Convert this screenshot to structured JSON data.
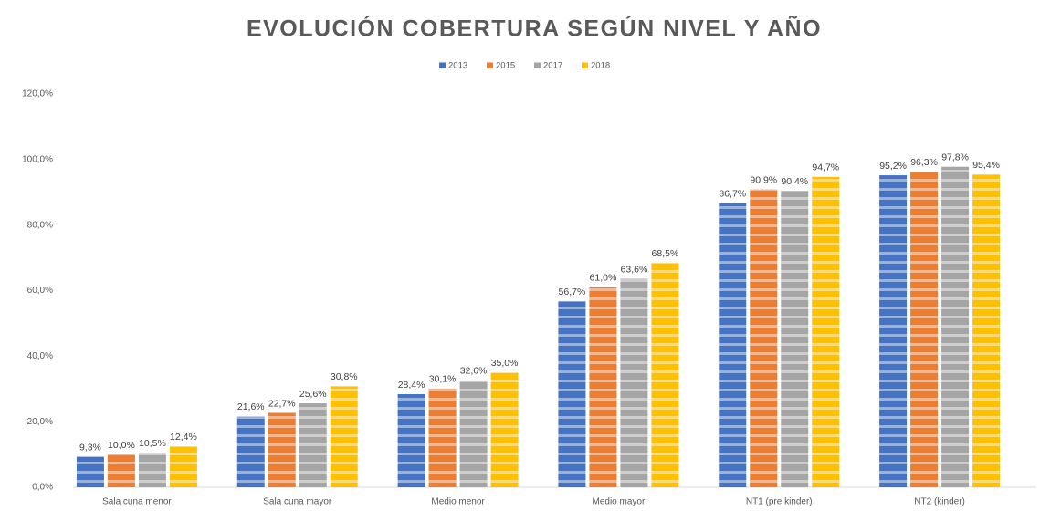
{
  "chart_data": {
    "type": "bar",
    "title": "EVOLUCIÓN COBERTURA SEGÚN NIVEL Y AÑO",
    "categories": [
      "Sala cuna menor",
      "Sala cuna mayor",
      "Medio menor",
      "Medio mayor",
      "NT1 (pre kinder)",
      "NT2 (kinder)"
    ],
    "series": [
      {
        "name": "2013",
        "color": "#4472c4",
        "values": [
          9.3,
          21.6,
          28.4,
          56.7,
          86.7,
          95.2
        ],
        "value_labels": [
          "9,3%",
          "21,6%",
          "28,4%",
          "56,7%",
          "86,7%",
          "95,2%"
        ]
      },
      {
        "name": "2015",
        "color": "#ed7d31",
        "values": [
          10.0,
          22.7,
          30.1,
          61.0,
          90.9,
          96.3
        ],
        "value_labels": [
          "10,0%",
          "22,7%",
          "30,1%",
          "61,0%",
          "90,9%",
          "96,3%"
        ]
      },
      {
        "name": "2017",
        "color": "#a5a5a5",
        "values": [
          10.5,
          25.6,
          32.6,
          63.6,
          90.4,
          97.8
        ],
        "value_labels": [
          "10,5%",
          "25,6%",
          "32,6%",
          "63,6%",
          "90,4%",
          "97,8%"
        ]
      },
      {
        "name": "2018",
        "color": "#ffc000",
        "values": [
          12.4,
          30.8,
          35.0,
          68.5,
          94.7,
          95.4
        ],
        "value_labels": [
          "12,4%",
          "30,8%",
          "35,0%",
          "68,5%",
          "94,7%",
          "95,4%"
        ]
      }
    ],
    "ylim": [
      0,
      120
    ],
    "yticks": [
      {
        "value": 0,
        "label": "0,0%"
      },
      {
        "value": 20,
        "label": "20,0%"
      },
      {
        "value": 40,
        "label": "40,0%"
      },
      {
        "value": 60,
        "label": "60,0%"
      },
      {
        "value": 80,
        "label": "80,0%"
      },
      {
        "value": 100,
        "label": "100,0%"
      },
      {
        "value": 120,
        "label": "120,0%"
      }
    ],
    "grid": false,
    "legend": "top"
  }
}
